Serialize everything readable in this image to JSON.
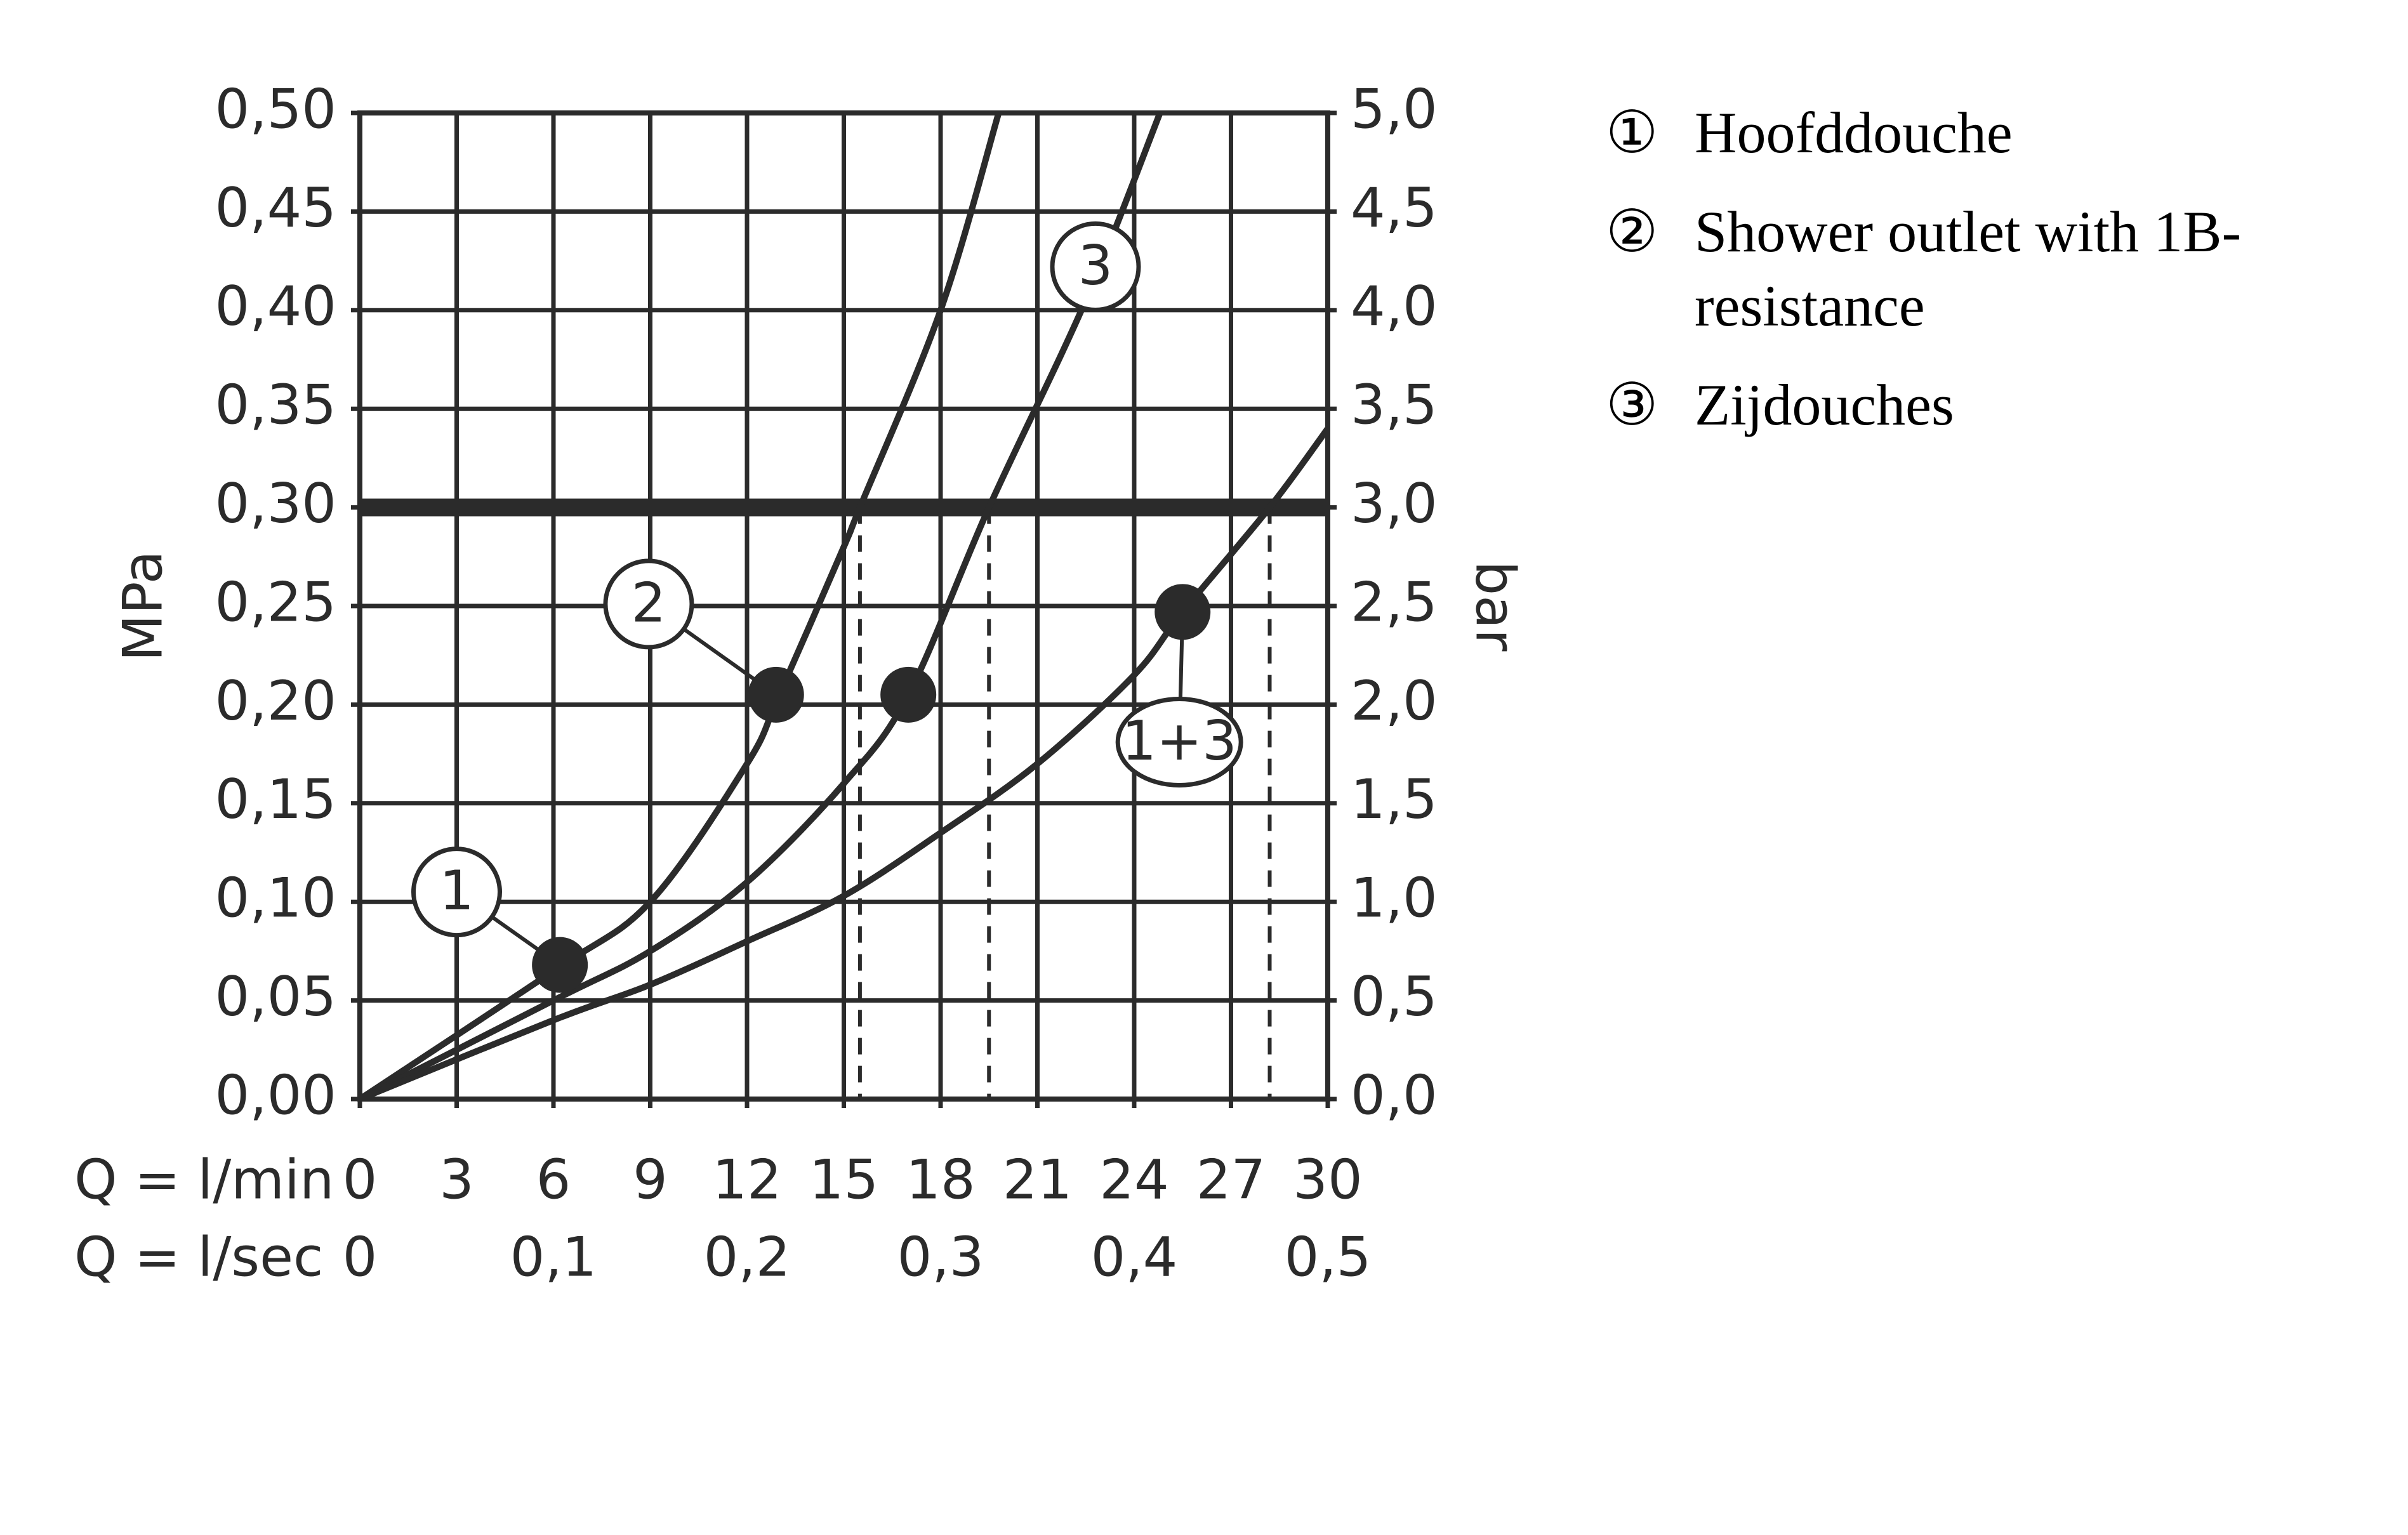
{
  "chart_data": {
    "type": "line",
    "color": "#2b2b2b",
    "grid": true,
    "xlabel": "Q = l/min",
    "x2label": "Q = l/sec",
    "ylabel": "MPa",
    "y2label": "bar",
    "xlim": [
      0,
      30
    ],
    "xticks": [
      0,
      3,
      6,
      9,
      12,
      15,
      18,
      21,
      24,
      27,
      30
    ],
    "x2lim": [
      0,
      0.5
    ],
    "x2ticks": [
      0,
      {
        "value": 0.1,
        "label": "0,1"
      },
      {
        "value": 0.2,
        "label": "0,2"
      },
      {
        "value": 0.3,
        "label": "0,3"
      },
      {
        "value": 0.4,
        "label": "0,4"
      },
      {
        "value": 0.5,
        "label": "0,5"
      }
    ],
    "ylim": [
      0,
      0.5
    ],
    "yticks": [
      {
        "value": 0,
        "label": "0,00"
      },
      {
        "value": 0.05,
        "label": "0,05"
      },
      {
        "value": 0.1,
        "label": "0,10"
      },
      {
        "value": 0.15,
        "label": "0,15"
      },
      {
        "value": 0.2,
        "label": "0,20"
      },
      {
        "value": 0.25,
        "label": "0,25"
      },
      {
        "value": 0.3,
        "label": "0,30"
      },
      {
        "value": 0.35,
        "label": "0,35"
      },
      {
        "value": 0.4,
        "label": "0,40"
      },
      {
        "value": 0.45,
        "label": "0,45"
      },
      {
        "value": 0.5,
        "label": "0,50"
      }
    ],
    "y2lim": [
      0,
      5
    ],
    "y2ticks": [
      {
        "value": 0,
        "label": "0,0"
      },
      {
        "value": 0.5,
        "label": "0,5"
      },
      {
        "value": 1,
        "label": "1,0"
      },
      {
        "value": 1.5,
        "label": "1,5"
      },
      {
        "value": 2,
        "label": "2,0"
      },
      {
        "value": 2.5,
        "label": "2,5"
      },
      {
        "value": 3,
        "label": "3,0"
      },
      {
        "value": 3.5,
        "label": "3,5"
      },
      {
        "value": 4,
        "label": "4,0"
      },
      {
        "value": 4.5,
        "label": "4,5"
      },
      {
        "value": 5,
        "label": "5,0"
      }
    ],
    "ref_line": 0.3,
    "drop_lines": [
      15.5,
      19.5,
      28.2
    ],
    "series": [
      {
        "x": [
          0,
          6,
          9,
          12,
          13,
          15,
          15.5,
          18,
          19.8
        ],
        "values": [
          0,
          0.065,
          0.1,
          0.17,
          0.205,
          0.28,
          0.3,
          0.4,
          0.5
        ]
      },
      {
        "x": [
          0,
          6,
          9,
          12,
          15,
          17,
          19.5,
          22.5,
          24.8
        ],
        "values": [
          0,
          0.05,
          0.075,
          0.11,
          0.16,
          0.205,
          0.3,
          0.405,
          0.5
        ]
      },
      {
        "x": [
          0,
          6,
          9,
          12,
          15,
          18,
          21,
          24,
          25.5,
          28.2,
          30
        ],
        "values": [
          0,
          0.04,
          0.058,
          0.08,
          0.103,
          0.135,
          0.17,
          0.215,
          0.247,
          0.3,
          0.34
        ]
      }
    ],
    "markers": [
      {
        "x": 6.2,
        "y": 0.068
      },
      {
        "x": 12.9,
        "y": 0.205
      },
      {
        "x": 17,
        "y": 0.205
      },
      {
        "x": 25.5,
        "y": 0.247
      }
    ],
    "callouts": [
      {
        "label": "1",
        "x": 3,
        "y": 0.105,
        "to": [
          6.2,
          0.068
        ]
      },
      {
        "label": "2",
        "x": 8.95,
        "y": 0.251,
        "to": [
          12.9,
          0.205
        ]
      },
      {
        "label": "3",
        "x": 22.8,
        "y": 0.422,
        "to": null
      },
      {
        "label": "1+3",
        "x": 25.4,
        "y": 0.181,
        "to": [
          25.5,
          0.247
        ]
      }
    ],
    "legend": [
      {
        "symbol": "①",
        "lines": [
          "Hoofddouche"
        ]
      },
      {
        "symbol": "②",
        "lines": [
          "Shower outlet with 1B-",
          "resistance"
        ]
      },
      {
        "symbol": "③",
        "lines": [
          "Zijdouches"
        ]
      }
    ]
  }
}
